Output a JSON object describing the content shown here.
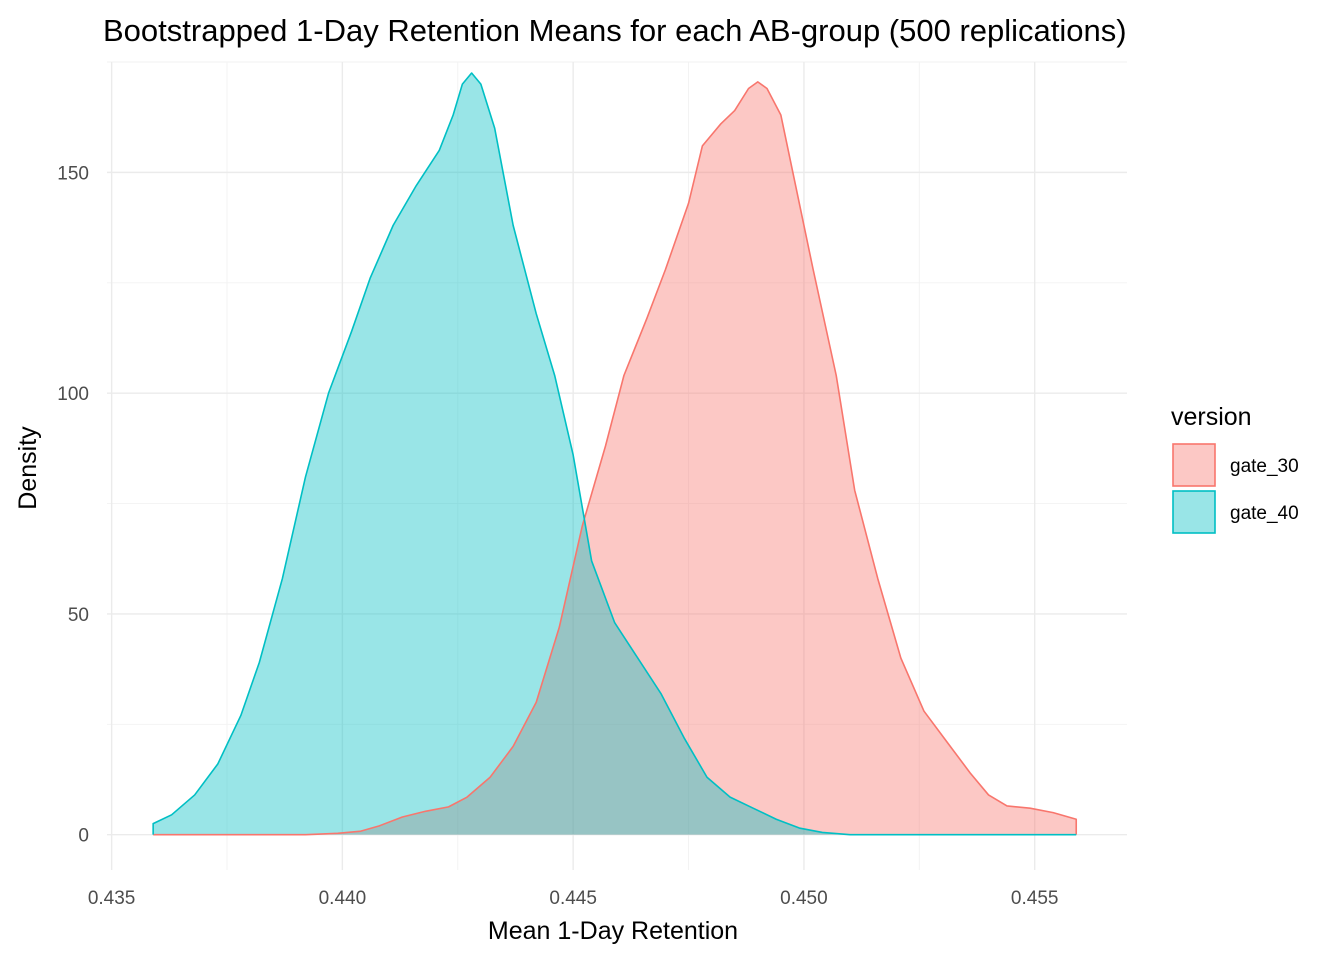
{
  "chart_data": {
    "type": "area",
    "title": "Bootstrapped 1-Day Retention Means for each AB-group (500 replications)",
    "xlabel": "Mean 1-Day Retention",
    "ylabel": "Density",
    "xlim": [
      0.4349,
      0.457
    ],
    "ylim": [
      -8,
      175
    ],
    "x_ticks": [
      {
        "value": 0.435,
        "label": "0.435"
      },
      {
        "value": 0.44,
        "label": "0.440"
      },
      {
        "value": 0.445,
        "label": "0.445"
      },
      {
        "value": 0.45,
        "label": "0.450"
      },
      {
        "value": 0.455,
        "label": "0.455"
      }
    ],
    "y_ticks": [
      {
        "value": 0,
        "label": "0"
      },
      {
        "value": 50,
        "label": "50"
      },
      {
        "value": 100,
        "label": "100"
      },
      {
        "value": 150,
        "label": "150"
      }
    ],
    "x_minor": [
      0.4375,
      0.4425,
      0.4475,
      0.4525
    ],
    "y_minor": [
      25,
      75,
      125,
      175
    ],
    "grid": true,
    "legend": {
      "title": "version",
      "position": "right"
    },
    "series": [
      {
        "name": "gate_30",
        "color": "#F8766D",
        "fill": "#F8766D",
        "fill_opacity": 0.4,
        "points": [
          [
            0.4359,
            0
          ],
          [
            0.438,
            0
          ],
          [
            0.4392,
            0
          ],
          [
            0.4399,
            0.3
          ],
          [
            0.4404,
            0.8
          ],
          [
            0.4408,
            2
          ],
          [
            0.4413,
            4
          ],
          [
            0.4418,
            5.3
          ],
          [
            0.4423,
            6.3
          ],
          [
            0.4427,
            8.5
          ],
          [
            0.4432,
            13
          ],
          [
            0.4437,
            20
          ],
          [
            0.4442,
            30
          ],
          [
            0.4447,
            47
          ],
          [
            0.4452,
            70
          ],
          [
            0.4457,
            88
          ],
          [
            0.4461,
            104
          ],
          [
            0.4466,
            117
          ],
          [
            0.447,
            128
          ],
          [
            0.4475,
            143
          ],
          [
            0.4478,
            156
          ],
          [
            0.4482,
            161
          ],
          [
            0.4485,
            164
          ],
          [
            0.4488,
            169
          ],
          [
            0.449,
            170.5
          ],
          [
            0.4492,
            169
          ],
          [
            0.4495,
            163
          ],
          [
            0.4498,
            148
          ],
          [
            0.4502,
            128
          ],
          [
            0.4507,
            104
          ],
          [
            0.4511,
            78
          ],
          [
            0.4516,
            58
          ],
          [
            0.4521,
            40
          ],
          [
            0.4526,
            28
          ],
          [
            0.4531,
            21
          ],
          [
            0.4536,
            14
          ],
          [
            0.454,
            9
          ],
          [
            0.4544,
            6.5
          ],
          [
            0.4549,
            6
          ],
          [
            0.4554,
            5
          ],
          [
            0.4559,
            3.5
          ]
        ]
      },
      {
        "name": "gate_40",
        "color": "#00BFC4",
        "fill": "#00BFC4",
        "fill_opacity": 0.4,
        "points": [
          [
            0.4359,
            2.5
          ],
          [
            0.4363,
            4.5
          ],
          [
            0.4368,
            9
          ],
          [
            0.4373,
            16
          ],
          [
            0.4378,
            27
          ],
          [
            0.4382,
            39
          ],
          [
            0.4387,
            58
          ],
          [
            0.4392,
            81
          ],
          [
            0.4397,
            100
          ],
          [
            0.4402,
            114
          ],
          [
            0.4406,
            126
          ],
          [
            0.4411,
            138
          ],
          [
            0.4416,
            147
          ],
          [
            0.4421,
            155
          ],
          [
            0.4424,
            163
          ],
          [
            0.4426,
            170
          ],
          [
            0.4428,
            172.5
          ],
          [
            0.443,
            170
          ],
          [
            0.4433,
            160
          ],
          [
            0.4437,
            138
          ],
          [
            0.4442,
            118
          ],
          [
            0.4446,
            104
          ],
          [
            0.445,
            86
          ],
          [
            0.4454,
            62
          ],
          [
            0.4459,
            48
          ],
          [
            0.4464,
            40
          ],
          [
            0.4469,
            32
          ],
          [
            0.4474,
            22
          ],
          [
            0.4479,
            13
          ],
          [
            0.4484,
            8.5
          ],
          [
            0.4489,
            6
          ],
          [
            0.4494,
            3.5
          ],
          [
            0.4499,
            1.5
          ],
          [
            0.4504,
            0.5
          ],
          [
            0.451,
            0
          ],
          [
            0.453,
            0
          ],
          [
            0.4559,
            0
          ]
        ]
      }
    ]
  }
}
